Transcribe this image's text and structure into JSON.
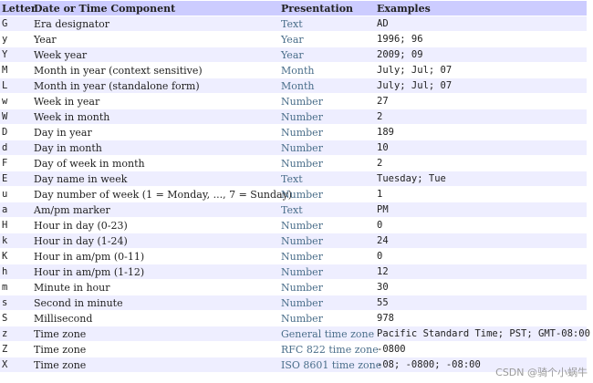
{
  "table": {
    "headers": [
      "Letter",
      "Date or Time Component",
      "Presentation",
      "Examples"
    ],
    "rows": [
      {
        "letter": "G",
        "component": "Era designator",
        "presentation": "Text",
        "examples": "AD"
      },
      {
        "letter": "y",
        "component": "Year",
        "presentation": "Year",
        "examples": "1996; 96"
      },
      {
        "letter": "Y",
        "component": "Week year",
        "presentation": "Year",
        "examples": "2009; 09"
      },
      {
        "letter": "M",
        "component": "Month in year (context sensitive)",
        "presentation": "Month",
        "examples": "July; Jul; 07"
      },
      {
        "letter": "L",
        "component": "Month in year (standalone form)",
        "presentation": "Month",
        "examples": "July; Jul; 07"
      },
      {
        "letter": "w",
        "component": "Week in year",
        "presentation": "Number",
        "examples": "27"
      },
      {
        "letter": "W",
        "component": "Week in month",
        "presentation": "Number",
        "examples": "2"
      },
      {
        "letter": "D",
        "component": "Day in year",
        "presentation": "Number",
        "examples": "189"
      },
      {
        "letter": "d",
        "component": "Day in month",
        "presentation": "Number",
        "examples": "10"
      },
      {
        "letter": "F",
        "component": "Day of week in month",
        "presentation": "Number",
        "examples": "2"
      },
      {
        "letter": "E",
        "component": "Day name in week",
        "presentation": "Text",
        "examples": "Tuesday; Tue"
      },
      {
        "letter": "u",
        "component": "Day number of week (1 = Monday, ..., 7 = Sunday)",
        "presentation": "Number",
        "examples": "1"
      },
      {
        "letter": "a",
        "component": "Am/pm marker",
        "presentation": "Text",
        "examples": "PM"
      },
      {
        "letter": "H",
        "component": "Hour in day (0-23)",
        "presentation": "Number",
        "examples": "0"
      },
      {
        "letter": "k",
        "component": "Hour in day (1-24)",
        "presentation": "Number",
        "examples": "24"
      },
      {
        "letter": "K",
        "component": "Hour in am/pm (0-11)",
        "presentation": "Number",
        "examples": "0"
      },
      {
        "letter": "h",
        "component": "Hour in am/pm (1-12)",
        "presentation": "Number",
        "examples": "12"
      },
      {
        "letter": "m",
        "component": "Minute in hour",
        "presentation": "Number",
        "examples": "30"
      },
      {
        "letter": "s",
        "component": "Second in minute",
        "presentation": "Number",
        "examples": "55"
      },
      {
        "letter": "S",
        "component": "Millisecond",
        "presentation": "Number",
        "examples": "978"
      },
      {
        "letter": "z",
        "component": "Time zone",
        "presentation": "General time zone",
        "examples": "Pacific Standard Time; PST; GMT-08:00"
      },
      {
        "letter": "Z",
        "component": "Time zone",
        "presentation": "RFC 822 time zone",
        "examples": "-0800"
      },
      {
        "letter": "X",
        "component": "Time zone",
        "presentation": "ISO 8601 time zone",
        "examples": "-08; -0800; -08:00"
      }
    ]
  },
  "watermark": "CSDN @骑个小蜗牛",
  "colors": {
    "header_bg": "#ccccff",
    "stripe_bg": "#eeeeff",
    "presentation_text": "#4a6e8a"
  }
}
